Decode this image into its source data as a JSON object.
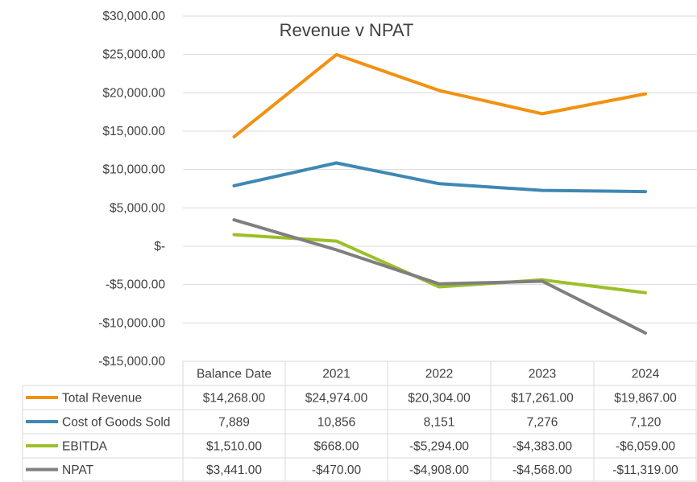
{
  "chart_data": {
    "type": "line",
    "title": "Revenue v NPAT",
    "categories": [
      "Balance Date",
      "2021",
      "2022",
      "2023",
      "2024"
    ],
    "ylim": [
      -15000,
      30000
    ],
    "ytick_step": 5000,
    "y_tick_labels": [
      "$30,000.00",
      "$25,000.00",
      "$20,000.00",
      "$15,000.00",
      "$10,000.00",
      "$5,000.00",
      "$-",
      "-$5,000.00",
      "-$10,000.00",
      "-$15,000.00"
    ],
    "grid": true,
    "legend": "data-table",
    "series": [
      {
        "name": "Total Revenue",
        "color": "#f29111",
        "values": [
          14268,
          24974,
          20304,
          17261,
          19867
        ],
        "labels": [
          "$14,268.00",
          "$24,974.00",
          "$20,304.00",
          "$17,261.00",
          "$19,867.00"
        ]
      },
      {
        "name": "Cost of Goods Sold",
        "color": "#3e88b3",
        "values": [
          7889,
          10856,
          8151,
          7276,
          7120
        ],
        "labels": [
          "7,889",
          "10,856",
          "8,151",
          "7,276",
          "7,120"
        ]
      },
      {
        "name": "EBITDA",
        "color": "#9cc028",
        "values": [
          1510,
          668,
          -5294,
          -4383,
          -6059
        ],
        "labels": [
          "$1,510.00",
          "$668.00",
          "-$5,294.00",
          "-$4,383.00",
          "-$6,059.00"
        ]
      },
      {
        "name": "NPAT",
        "color": "#7f7f7f",
        "values": [
          3441,
          -470,
          -4908,
          -4568,
          -11319
        ],
        "labels": [
          "$3,441.00",
          "-$470.00",
          "-$4,908.00",
          "-$4,568.00",
          "-$11,319.00"
        ]
      }
    ]
  }
}
